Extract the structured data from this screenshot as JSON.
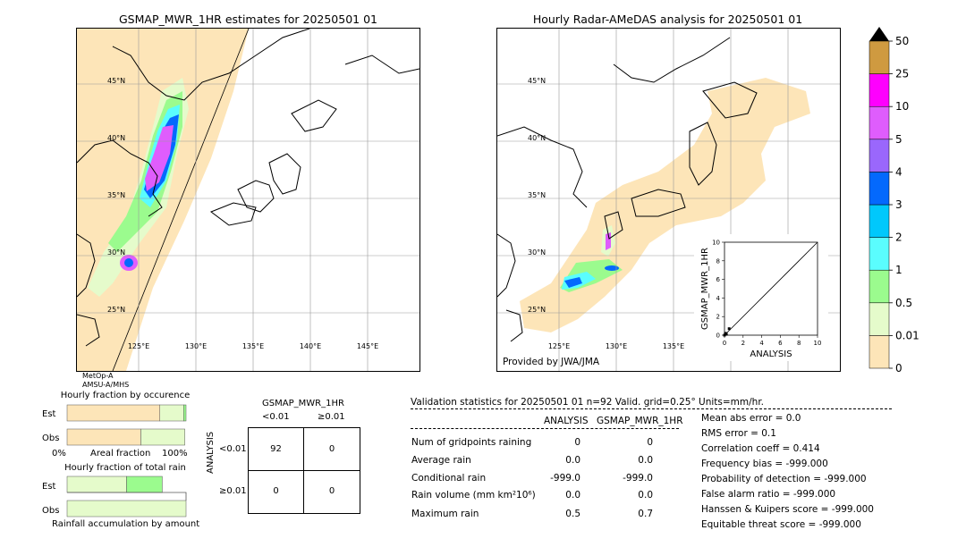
{
  "left_map": {
    "title": "GSMAP_MWR_1HR estimates for 20250501 01",
    "lat_labels": [
      "45°N",
      "40°N",
      "35°N",
      "30°N",
      "25°N"
    ],
    "lon_labels": [
      "125°E",
      "130°E",
      "135°E",
      "140°E",
      "145°E"
    ],
    "footnote_line1": "MetOp-A",
    "footnote_line2": "AMSU-A/MHS"
  },
  "right_map": {
    "title": "Hourly Radar-AMeDAS analysis for 20250501 01",
    "lat_labels": [
      "45°N",
      "40°N",
      "35°N",
      "30°N",
      "25°N"
    ],
    "lon_labels": [
      "125°E",
      "130°E",
      "135°E"
    ],
    "credit": "Provided by JWA/JMA"
  },
  "scatter_inset": {
    "xlabel": "ANALYSIS",
    "ylabel": "GSMAP_MWR_1HR",
    "ticks": [
      "0",
      "2",
      "4",
      "6",
      "8",
      "10"
    ]
  },
  "colorbar": {
    "labels": [
      "0",
      "0.01",
      "0.5",
      "1",
      "2",
      "3",
      "4",
      "5",
      "10",
      "25",
      "50"
    ],
    "colors": [
      "#fde5b8",
      "#e5fbcb",
      "#9bfb8e",
      "#5afdfe",
      "#00c8fc",
      "#0469fd",
      "#9a67fc",
      "#df5dfd",
      "#fe00fe",
      "#cf9a40"
    ],
    "extend_color": "#000000"
  },
  "occurrence_panel": {
    "title": "Hourly fraction by occurence",
    "row_labels": [
      "Est",
      "Obs"
    ],
    "axis_left": "0%",
    "axis_mid": "Areal fraction",
    "axis_right": "100%"
  },
  "total_rain_panel": {
    "title": "Hourly fraction of total rain",
    "row_labels": [
      "Est",
      "Obs"
    ],
    "footer": "Rainfall accumulation by amount"
  },
  "contingency": {
    "title": "GSMAP_MWR_1HR",
    "col_labels": [
      "<0.01",
      "≥0.01"
    ],
    "row_labels": [
      "<0.01",
      "≥0.01"
    ],
    "axis_label": "ANALYSIS",
    "cells": [
      "92",
      "0",
      "0",
      "0"
    ]
  },
  "validation": {
    "header": "Validation statistics for 20250501 01  n=92 Valid. grid=0.25° Units=mm/hr.",
    "col_analysis": "ANALYSIS",
    "col_gsmap": "GSMAP_MWR_1HR",
    "rows": [
      {
        "label": "Num of gridpoints raining",
        "analysis": "0",
        "gsmap": "0"
      },
      {
        "label": "Average rain",
        "analysis": "0.0",
        "gsmap": "0.0"
      },
      {
        "label": "Conditional rain",
        "analysis": "-999.0",
        "gsmap": "-999.0"
      },
      {
        "label": "Rain volume (mm km²10⁶)",
        "analysis": "0.0",
        "gsmap": "0.0"
      },
      {
        "label": "Maximum rain",
        "analysis": "0.5",
        "gsmap": "0.7"
      }
    ],
    "scores": [
      "Mean abs error =    0.0",
      "RMS error =    0.1",
      "Correlation coeff =  0.414",
      "Frequency bias = -999.000",
      "Probability of detection = -999.000",
      "False alarm ratio = -999.000",
      "Hanssen & Kuipers score = -999.000",
      "Equitable threat score = -999.000"
    ]
  },
  "chart_data": [
    {
      "type": "heatmap",
      "title": "GSMAP_MWR_1HR estimates for 20250501 01",
      "xlabel": "",
      "ylabel": "",
      "x_ticks": [
        "125°E",
        "130°E",
        "135°E",
        "140°E",
        "145°E"
      ],
      "y_ticks": [
        "45°N",
        "40°N",
        "35°N",
        "30°N",
        "25°N"
      ]
    },
    {
      "type": "heatmap",
      "title": "Hourly Radar-AMeDAS analysis for 20250501 01",
      "xlabel": "",
      "ylabel": "",
      "x_ticks": [
        "125°E",
        "130°E",
        "135°E"
      ],
      "y_ticks": [
        "45°N",
        "40°N",
        "35°N",
        "30°N",
        "25°N"
      ]
    },
    {
      "type": "scatter",
      "xlabel": "ANALYSIS",
      "ylabel": "GSMAP_MWR_1HR",
      "xlim": [
        0,
        10
      ],
      "ylim": [
        0,
        10
      ],
      "points": [
        [
          0.0,
          0.0
        ],
        [
          0.1,
          0.2
        ],
        [
          0.2,
          0.1
        ],
        [
          0.5,
          0.7
        ]
      ]
    },
    {
      "type": "bar",
      "title": "Hourly fraction by occurence",
      "categories": [
        "Est",
        "Obs"
      ],
      "series": [
        {
          "values": [
            0.78,
            0.62
          ]
        },
        {
          "values": [
            0.2,
            0.37
          ]
        },
        {
          "values": [
            0.02,
            0.0
          ]
        }
      ]
    },
    {
      "type": "bar",
      "title": "Hourly fraction of total rain",
      "categories": [
        "Est",
        "Obs"
      ],
      "series": [
        {
          "values": [
            0.5,
            1.0
          ]
        },
        {
          "values": [
            0.3,
            0.0
          ]
        }
      ]
    }
  ]
}
